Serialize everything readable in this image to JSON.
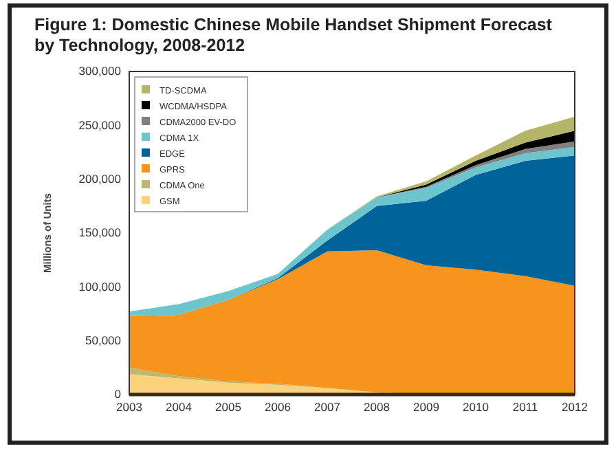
{
  "chart_data": {
    "type": "area",
    "stacked": true,
    "title": "Figure 1: Domestic Chinese Mobile Handset Shipment Forecast by Technology, 2008-2012",
    "ylabel": "Millions of Units",
    "categories": [
      "2003",
      "2004",
      "2005",
      "2006",
      "2007",
      "2008",
      "2009",
      "2010",
      "2011",
      "2012"
    ],
    "series": [
      {
        "name": "GSM",
        "color": "#f9d27a",
        "values": [
          19000,
          15000,
          11000,
          9000,
          6000,
          2000,
          0,
          0,
          0,
          0
        ]
      },
      {
        "name": "CDMA One",
        "color": "#bcb870",
        "values": [
          6000,
          2000,
          1000,
          1000,
          0,
          0,
          0,
          0,
          0,
          0
        ]
      },
      {
        "name": "GPRS",
        "color": "#f7941d",
        "values": [
          48000,
          57000,
          76000,
          97000,
          127000,
          132000,
          120000,
          116000,
          110000,
          101000
        ]
      },
      {
        "name": "EDGE",
        "color": "#00649a",
        "values": [
          0,
          0,
          0,
          1000,
          10000,
          41000,
          60000,
          88000,
          107000,
          121000
        ]
      },
      {
        "name": "CDMA 1X",
        "color": "#6cc4cc",
        "values": [
          4000,
          10000,
          8000,
          4000,
          10000,
          8000,
          12000,
          7000,
          7000,
          8000
        ]
      },
      {
        "name": "CDMA2000 EV-DO",
        "color": "#808080",
        "values": [
          0,
          0,
          0,
          0,
          0,
          0,
          1000,
          2000,
          4000,
          5000
        ]
      },
      {
        "name": "WCDMA/HSDPA",
        "color": "#000000",
        "values": [
          0,
          0,
          0,
          0,
          0,
          0,
          2000,
          4000,
          6000,
          10000
        ]
      },
      {
        "name": "TD-SCDMA",
        "color": "#b5b56a",
        "values": [
          0,
          0,
          0,
          0,
          0,
          1000,
          3000,
          5000,
          11000,
          13000
        ]
      }
    ],
    "ylim": [
      0,
      300000
    ],
    "yticks": [
      {
        "value": 0,
        "label": "0"
      },
      {
        "value": 50000,
        "label": "50,000"
      },
      {
        "value": 100000,
        "label": "100,000"
      },
      {
        "value": 150000,
        "label": "150,000"
      },
      {
        "value": 200000,
        "label": "200,000"
      },
      {
        "value": 250000,
        "label": "250,000"
      },
      {
        "value": 300000,
        "label": "300,000"
      }
    ],
    "legend": "top left"
  }
}
